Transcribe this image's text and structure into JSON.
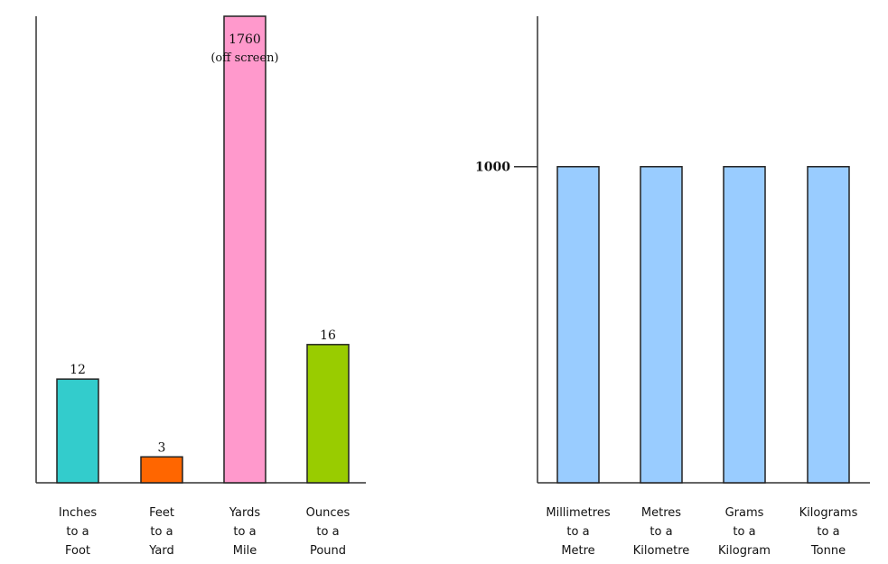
{
  "chart_data": [
    {
      "type": "bar",
      "categories": [
        "Inches to a Foot",
        "Feet to a Yard",
        "Yards to a Mile",
        "Ounces to a Pound"
      ],
      "category_lines": [
        [
          "Inches",
          "to a",
          "Foot"
        ],
        [
          "Feet",
          "to a",
          "Yard"
        ],
        [
          "Yards",
          "to a",
          "Mile"
        ],
        [
          "Ounces",
          "to a",
          "Pound"
        ]
      ],
      "values": [
        12,
        3,
        1760,
        16
      ],
      "data_labels": [
        "12",
        "3",
        "1760",
        "16"
      ],
      "annotations": [
        {
          "category": "Yards to a Mile",
          "text": "(off screen)"
        }
      ],
      "colors": [
        "#33cccc",
        "#ff6600",
        "#ff99cc",
        "#99cc00"
      ],
      "title": "",
      "xlabel": "",
      "ylabel": "",
      "ylim": [
        0,
        54
      ],
      "grid": false,
      "legend": "none"
    },
    {
      "type": "bar",
      "categories": [
        "Millimetres to a Metre",
        "Metres to a Kilometre",
        "Grams to a Kilogram",
        "Kilograms to a Tonne"
      ],
      "category_lines": [
        [
          "Millimetres",
          "to a",
          "Metre"
        ],
        [
          "Metres",
          "to a",
          "Kilometre"
        ],
        [
          "Grams",
          "to a",
          "Kilogram"
        ],
        [
          "Kilograms",
          "to a",
          "Tonne"
        ]
      ],
      "values": [
        1000,
        1000,
        1000,
        1000
      ],
      "yticks": [
        "1000"
      ],
      "colors": [
        "#99ccff",
        "#99ccff",
        "#99ccff",
        "#99ccff"
      ],
      "title": "",
      "xlabel": "",
      "ylabel": "",
      "ylim": [
        0,
        1476
      ],
      "grid": false,
      "legend": "none"
    }
  ]
}
